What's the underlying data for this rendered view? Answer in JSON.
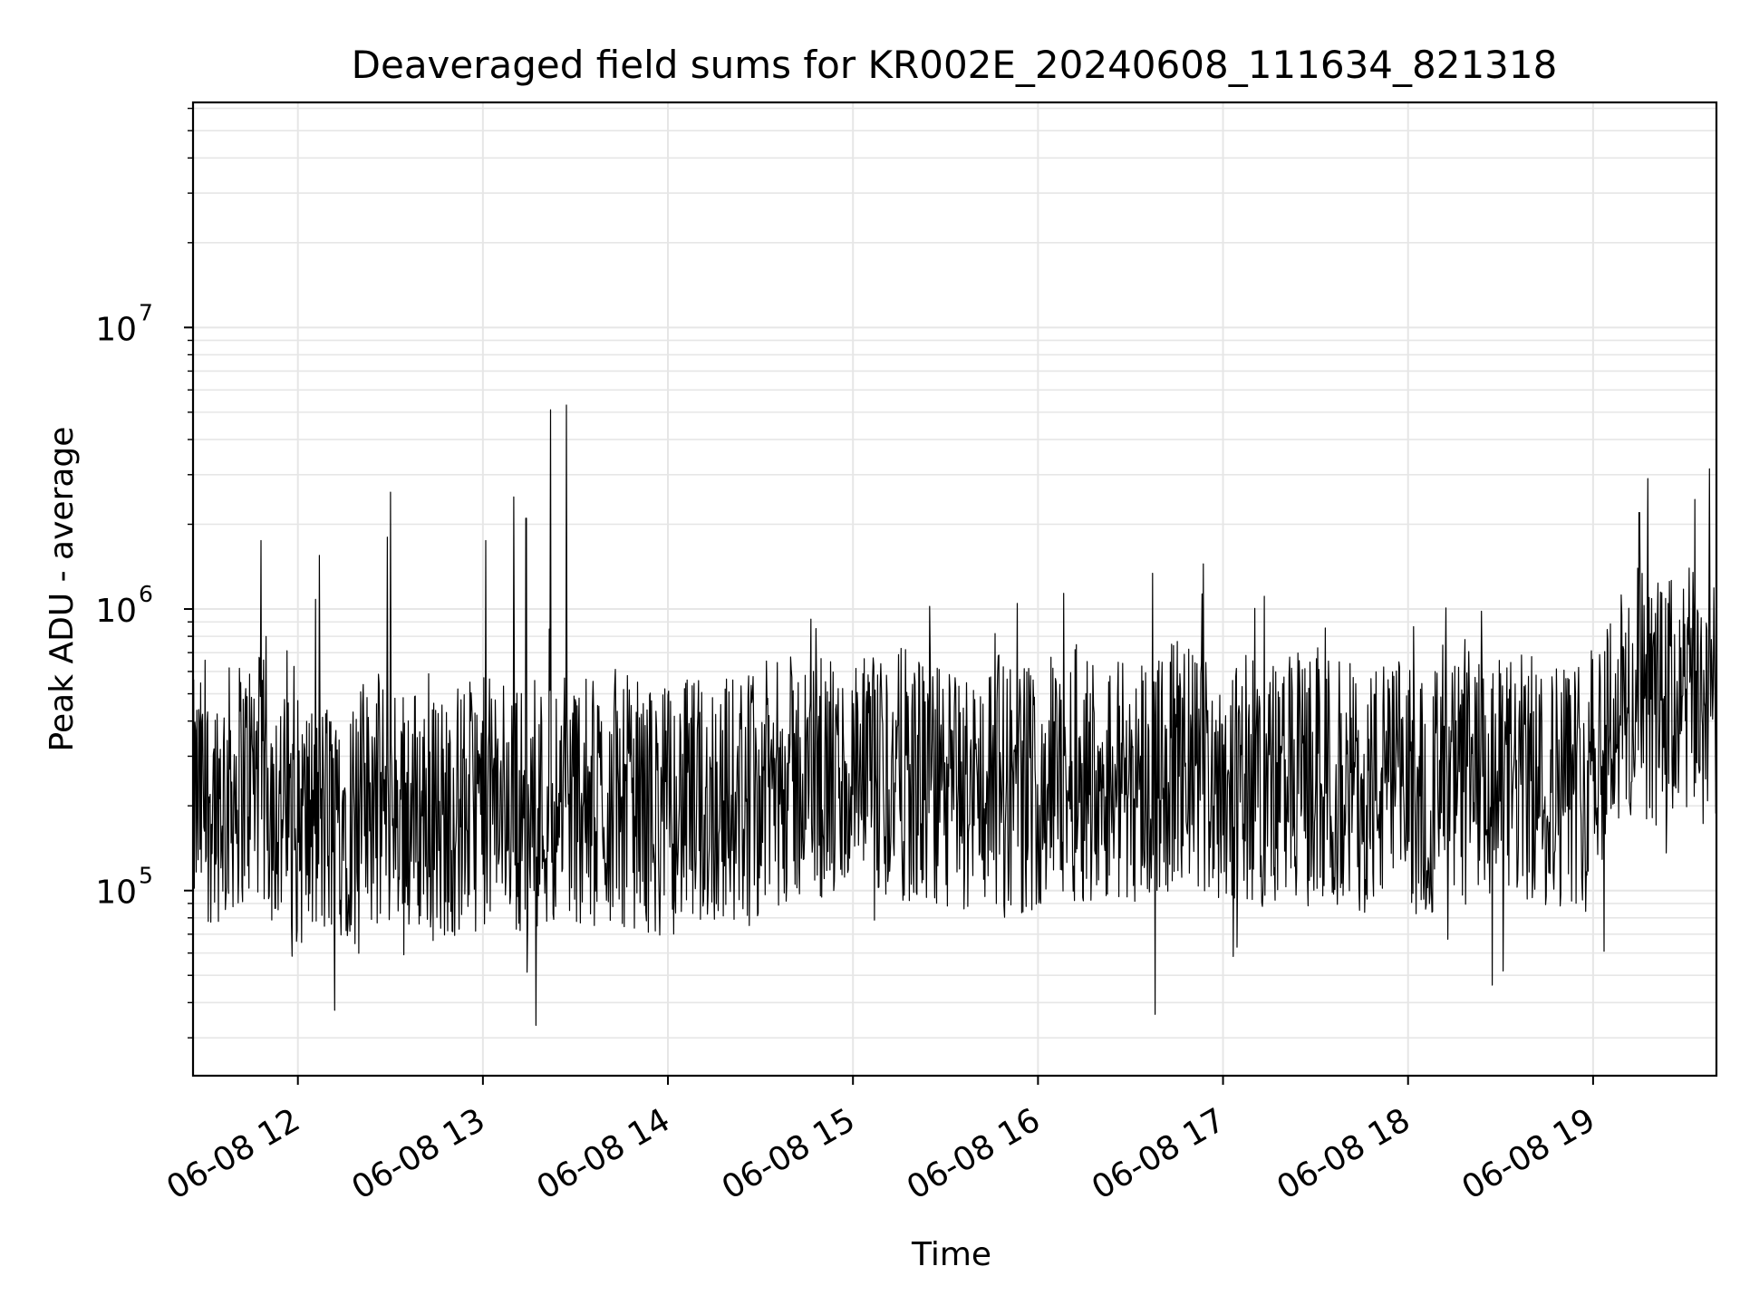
{
  "chart_data": {
    "type": "line",
    "title": "Deaveraged field sums for KR002E_20240608_111634_821318",
    "xlabel": "Time",
    "ylabel": "Peak ADU - average",
    "x_ticks": [
      {
        "value": "2024-06-08 12:00",
        "label": "06-08 12"
      },
      {
        "value": "2024-06-08 13:00",
        "label": "06-08 13"
      },
      {
        "value": "2024-06-08 14:00",
        "label": "06-08 14"
      },
      {
        "value": "2024-06-08 15:00",
        "label": "06-08 15"
      },
      {
        "value": "2024-06-08 16:00",
        "label": "06-08 16"
      },
      {
        "value": "2024-06-08 17:00",
        "label": "06-08 17"
      },
      {
        "value": "2024-06-08 18:00",
        "label": "06-08 18"
      },
      {
        "value": "2024-06-08 19:00",
        "label": "06-08 19"
      }
    ],
    "y_ticks": [
      {
        "value": 100000,
        "base": "10",
        "exp": "5"
      },
      {
        "value": 1000000,
        "base": "10",
        "exp": "6"
      },
      {
        "value": 10000000,
        "base": "10",
        "exp": "7"
      }
    ],
    "xlim": [
      "2024-06-08 11:26",
      "2024-06-08 19:40"
    ],
    "ylim": [
      22000,
      63000000
    ],
    "yscale": "log",
    "grid": true,
    "line_color": "#000000",
    "grid_color": "#e6e6e6",
    "series": [
      {
        "x": [
          "2024-06-08 11:26",
          "2024-06-08 11:36",
          "2024-06-08 11:46",
          "2024-06-08 11:56",
          "2024-06-08 12:06",
          "2024-06-08 12:16",
          "2024-06-08 12:26",
          "2024-06-08 12:36",
          "2024-06-08 12:46",
          "2024-06-08 12:56",
          "2024-06-08 13:06",
          "2024-06-08 13:16",
          "2024-06-08 13:26",
          "2024-06-08 13:36",
          "2024-06-08 13:46",
          "2024-06-08 13:56",
          "2024-06-08 14:06",
          "2024-06-08 14:16",
          "2024-06-08 14:26",
          "2024-06-08 14:36",
          "2024-06-08 14:46",
          "2024-06-08 14:56",
          "2024-06-08 15:06",
          "2024-06-08 15:16",
          "2024-06-08 15:26",
          "2024-06-08 15:36",
          "2024-06-08 15:46",
          "2024-06-08 15:56",
          "2024-06-08 16:06",
          "2024-06-08 16:16",
          "2024-06-08 16:26",
          "2024-06-08 16:36",
          "2024-06-08 16:46",
          "2024-06-08 16:56",
          "2024-06-08 17:06",
          "2024-06-08 17:16",
          "2024-06-08 17:26",
          "2024-06-08 17:36",
          "2024-06-08 17:46",
          "2024-06-08 17:56",
          "2024-06-08 18:06",
          "2024-06-08 18:16",
          "2024-06-08 18:26",
          "2024-06-08 18:36",
          "2024-06-08 18:46",
          "2024-06-08 18:56",
          "2024-06-08 19:06",
          "2024-06-08 19:16",
          "2024-06-08 19:26",
          "2024-06-08 19:36"
        ],
        "y": [
          200000,
          220000,
          260000,
          180000,
          170000,
          190000,
          210000,
          200000,
          180000,
          200000,
          210000,
          190000,
          220000,
          200000,
          210000,
          190000,
          200000,
          210000,
          220000,
          240000,
          250000,
          230000,
          240000,
          260000,
          230000,
          220000,
          250000,
          230000,
          250000,
          260000,
          250000,
          260000,
          270000,
          260000,
          250000,
          240000,
          250000,
          240000,
          230000,
          240000,
          220000,
          240000,
          230000,
          250000,
          240000,
          250000,
          420000,
          450000,
          470000,
          520000
        ]
      }
    ],
    "line_mean_hint": "noisy"
  }
}
